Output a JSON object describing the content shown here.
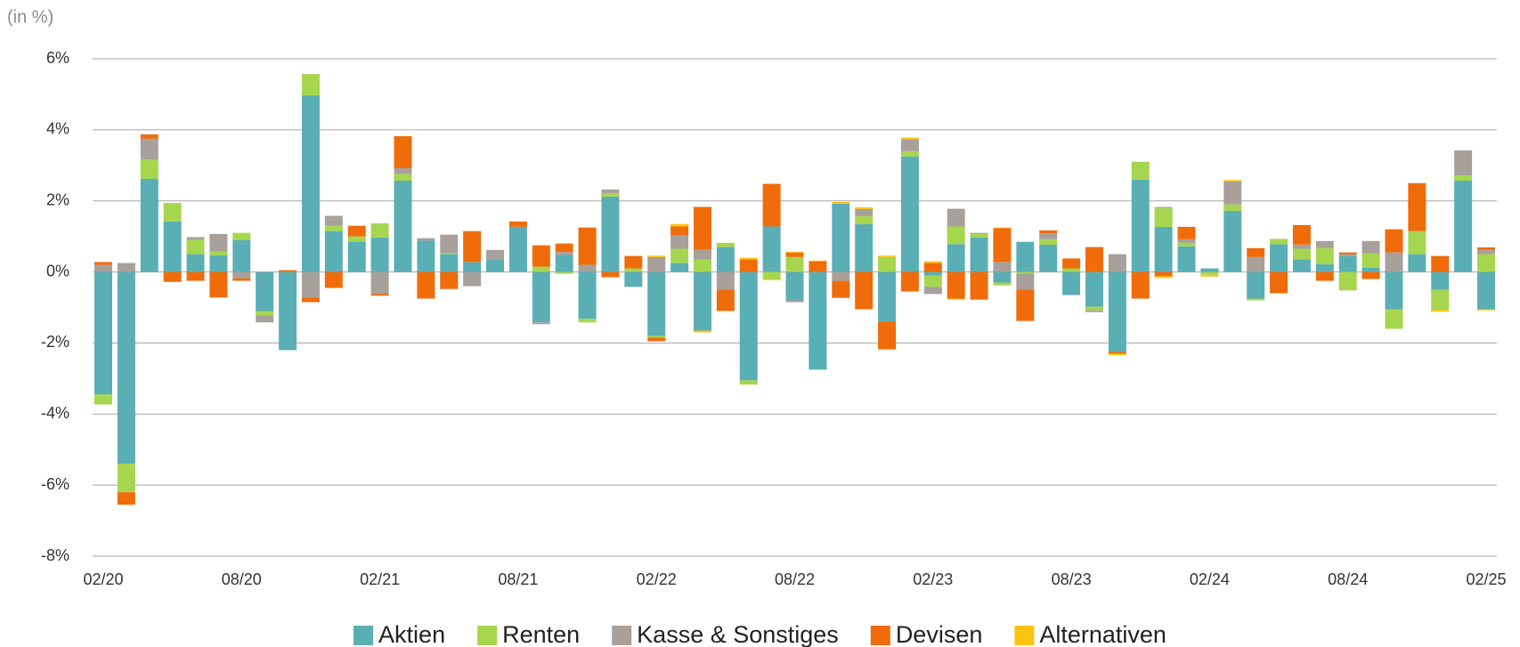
{
  "chart_data": {
    "type": "stacked_bar",
    "axis_label": "(in %)",
    "categories": [
      "02/20",
      null,
      null,
      null,
      null,
      null,
      "08/20",
      null,
      null,
      null,
      null,
      null,
      "02/21",
      null,
      null,
      null,
      null,
      null,
      "08/21",
      null,
      null,
      null,
      null,
      null,
      "02/22",
      null,
      null,
      null,
      null,
      null,
      "08/22",
      null,
      null,
      null,
      null,
      null,
      "02/23",
      null,
      null,
      null,
      null,
      null,
      "08/23",
      null,
      null,
      null,
      null,
      null,
      "02/24",
      null,
      null,
      null,
      null,
      null,
      "08/24",
      null,
      null,
      null,
      null,
      null,
      "02/25"
    ],
    "series": [
      {
        "name": "Aktien",
        "color": "#5aafb5",
        "values": [
          -3.45,
          -5.4,
          2.62,
          1.42,
          0.5,
          0.47,
          0.9,
          -1.1,
          -2.2,
          4.97,
          1.15,
          0.85,
          0.97,
          2.57,
          0.88,
          0.5,
          0.28,
          0.35,
          1.27,
          -1.42,
          0.48,
          -1.32,
          2.12,
          -0.42,
          -1.8,
          0.25,
          -1.65,
          0.7,
          -3.05,
          1.28,
          -0.8,
          -2.75,
          1.92,
          1.35,
          -1.4,
          3.25,
          -0.1,
          0.78,
          0.97,
          -0.3,
          0.85,
          0.77,
          -0.65,
          -0.98,
          -2.25,
          2.6,
          1.27,
          0.72,
          0.1,
          1.72,
          -0.75,
          0.78,
          0.35,
          0.22,
          0.45,
          0.12,
          -1.05,
          0.5,
          -0.5,
          2.57,
          -1.05
        ]
      },
      {
        "name": "Renten",
        "color": "#a6d64e",
        "values": [
          -0.28,
          -0.8,
          0.55,
          0.52,
          0.4,
          0.1,
          0.2,
          -0.12,
          0,
          0.6,
          0.15,
          0.15,
          0.4,
          0.18,
          0,
          0.03,
          0,
          0,
          0,
          0.15,
          -0.05,
          -0.1,
          0.1,
          0.1,
          -0.05,
          0.4,
          0.35,
          0.12,
          -0.12,
          -0.2,
          0.42,
          0,
          0,
          0.22,
          0.42,
          0.15,
          -0.32,
          0.5,
          0.1,
          -0.08,
          -0.05,
          0.15,
          0.1,
          -0.1,
          0,
          0.5,
          0.53,
          0.1,
          -0.08,
          0.18,
          -0.05,
          0.15,
          0.3,
          0.45,
          -0.52,
          0.4,
          -0.55,
          0.65,
          -0.57,
          0.15,
          0.5
        ]
      },
      {
        "name": "Kasse & Sonstiges",
        "color": "#a8a09a",
        "values": [
          0.2,
          0.25,
          0.58,
          0,
          0.08,
          0.5,
          -0.18,
          -0.2,
          0,
          -0.72,
          0.28,
          0,
          -0.62,
          0.17,
          0.07,
          0.52,
          -0.4,
          0.27,
          0,
          -0.05,
          0.08,
          0.2,
          0.1,
          0,
          0.42,
          0.38,
          0.28,
          -0.5,
          0,
          0,
          -0.05,
          0,
          -0.25,
          0.2,
          0,
          0.33,
          -0.2,
          0.5,
          0.03,
          0.28,
          -0.45,
          0.17,
          0,
          -0.05,
          0.5,
          0,
          0.03,
          0.1,
          0,
          0.65,
          0.42,
          0,
          0.12,
          0.2,
          0.05,
          0.35,
          0.55,
          0,
          0,
          0.7,
          0.12
        ]
      },
      {
        "name": "Devisen",
        "color": "#f06c0a",
        "values": [
          0.08,
          -0.35,
          0.12,
          -0.28,
          -0.25,
          -0.72,
          -0.07,
          0,
          0.05,
          -0.13,
          -0.45,
          0.3,
          -0.05,
          0.9,
          -0.75,
          -0.48,
          0.87,
          0,
          0.15,
          0.6,
          0.24,
          1.05,
          -0.15,
          0.35,
          -0.1,
          0.25,
          1.2,
          -0.6,
          0.35,
          1.2,
          0.12,
          0.3,
          -0.48,
          -1.05,
          -0.78,
          -0.55,
          0.25,
          -0.75,
          -0.78,
          0.95,
          -0.88,
          0.08,
          0.28,
          0.7,
          -0.05,
          -0.75,
          -0.12,
          0.35,
          0,
          0,
          0.25,
          -0.6,
          0.55,
          -0.25,
          0.05,
          -0.2,
          0.65,
          1.35,
          0.45,
          0,
          0.07
        ]
      },
      {
        "name": "Alternativen",
        "color": "#fcc30f",
        "values": [
          0,
          0,
          0,
          0,
          0,
          0,
          0,
          0,
          0,
          0,
          0,
          0,
          0,
          0,
          0,
          0,
          0,
          0,
          0,
          0,
          0,
          0,
          0,
          0,
          0.04,
          0.07,
          -0.05,
          0,
          0.05,
          -0.03,
          0.03,
          0.02,
          0.05,
          0.05,
          0.04,
          0.05,
          0.05,
          -0.03,
          0,
          0.02,
          0,
          0,
          0,
          0,
          -0.04,
          0,
          -0.05,
          0,
          -0.05,
          0.04,
          0,
          0,
          0,
          0,
          0,
          0,
          0,
          0,
          -0.05,
          0,
          -0.03
        ]
      }
    ],
    "ylim": [
      -8,
      6
    ],
    "yticks": [
      {
        "value": -8,
        "label": "-8%"
      },
      {
        "value": -6,
        "label": "-6%"
      },
      {
        "value": -4,
        "label": "-4%"
      },
      {
        "value": -2,
        "label": "-2%"
      },
      {
        "value": 0,
        "label": "0%"
      },
      {
        "value": 2,
        "label": "2%"
      },
      {
        "value": 4,
        "label": "4%"
      },
      {
        "value": 6,
        "label": "6%"
      }
    ],
    "grid": true,
    "legend": "bottom"
  }
}
